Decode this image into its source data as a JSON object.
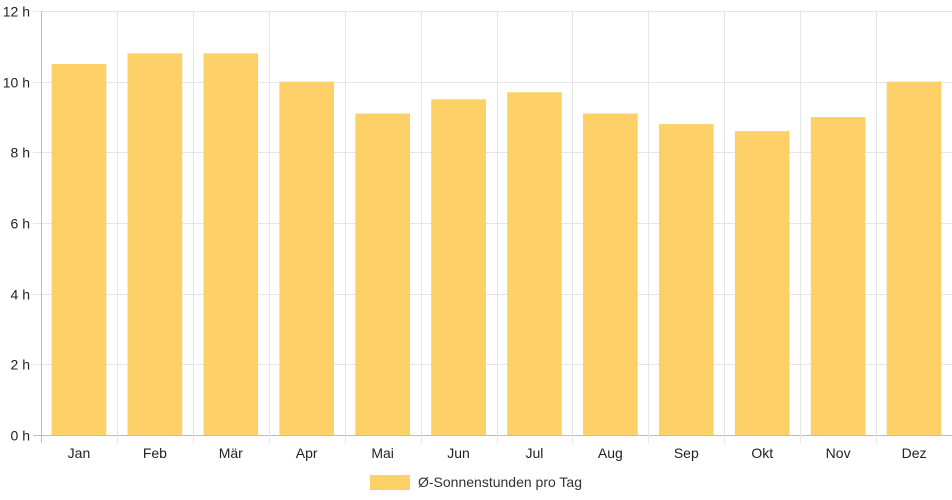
{
  "chart_data": {
    "type": "bar",
    "categories": [
      "Jan",
      "Feb",
      "Mär",
      "Apr",
      "Mai",
      "Jun",
      "Jul",
      "Aug",
      "Sep",
      "Okt",
      "Nov",
      "Dez"
    ],
    "series": [
      {
        "name": "Ø-Sonnenstunden pro Tag",
        "values": [
          10.5,
          10.8,
          10.8,
          10.0,
          9.1,
          9.5,
          9.7,
          9.1,
          8.8,
          8.6,
          9.0,
          10.0
        ]
      }
    ],
    "ylim": [
      0,
      12
    ],
    "yticks": [
      0,
      2,
      4,
      6,
      8,
      10,
      12
    ],
    "ytick_suffix": " h",
    "grid": true,
    "legend_position": "bottom",
    "bar_color": "#fdd068",
    "grid_color": "#e5e5e5"
  }
}
